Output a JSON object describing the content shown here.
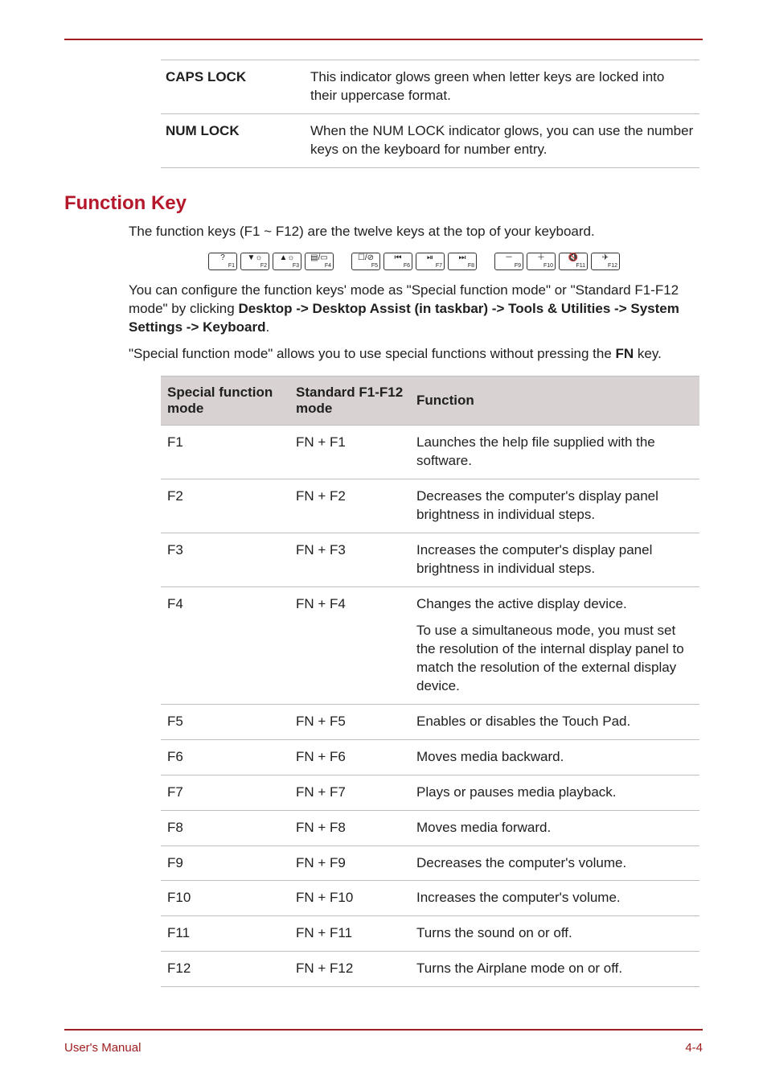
{
  "footer": {
    "left": "User's Manual",
    "right": "4-4"
  },
  "colors": {
    "accent": "#a01e1e",
    "heading": "#b5182a",
    "tableHeaderBg": "#d9d2d2",
    "border": "#bfbfbf",
    "text": "#1f1f1f"
  },
  "indicators": {
    "rows": [
      {
        "key": "CAPS LOCK",
        "desc": "This indicator glows green when letter keys are locked into their uppercase format."
      },
      {
        "key": "NUM LOCK",
        "desc": "When the NUM LOCK indicator glows, you can use the number keys on the keyboard for number entry."
      }
    ]
  },
  "heading": "Function Key",
  "para1": "The function keys (F1 ~ F12) are the twelve keys at the top of your keyboard.",
  "para2_pre": "You can configure the function keys' mode as \"Special function mode\" or \"Standard F1-F12 mode\" by clicking ",
  "para2_bold": "Desktop -> Desktop Assist (in taskbar) -> Tools & Utilities -> System Settings -> Keyboard",
  "para2_post": ".",
  "para3_pre": "\"Special function mode\" allows you to use special functions without pressing the ",
  "para3_bold": "FN",
  "para3_post": " key.",
  "keystrip": {
    "groups": [
      [
        {
          "sym": "?",
          "lbl": "F1"
        },
        {
          "sym": "▼☼",
          "lbl": "F2"
        },
        {
          "sym": "▲☼",
          "lbl": "F3"
        },
        {
          "sym": "▤/▭",
          "lbl": "F4"
        }
      ],
      [
        {
          "sym": "☐/⊘",
          "lbl": "F5"
        },
        {
          "sym": "⏮",
          "lbl": "F6"
        },
        {
          "sym": "⏯",
          "lbl": "F7"
        },
        {
          "sym": "⏭",
          "lbl": "F8"
        }
      ],
      [
        {
          "sym": "－",
          "lbl": "F9"
        },
        {
          "sym": "＋",
          "lbl": "F10"
        },
        {
          "sym": "🔇",
          "lbl": "F11"
        },
        {
          "sym": "✈",
          "lbl": "F12"
        }
      ]
    ]
  },
  "fnTable": {
    "headers": {
      "c1": "Special function mode",
      "c2": "Standard F1-F12 mode",
      "c3": "Function"
    },
    "rows": [
      {
        "c1": "F1",
        "c2": "FN + F1",
        "c3": [
          "Launches the help file supplied with the software."
        ]
      },
      {
        "c1": "F2",
        "c2": "FN + F2",
        "c3": [
          "Decreases the computer's display panel brightness in individual steps."
        ]
      },
      {
        "c1": "F3",
        "c2": "FN + F3",
        "c3": [
          "Increases the computer's display panel brightness in individual steps."
        ]
      },
      {
        "c1": "F4",
        "c2": "FN + F4",
        "c3": [
          "Changes the active display device.",
          "To use a simultaneous mode, you must set the resolution of the internal display panel to match the resolution of the external display device."
        ]
      },
      {
        "c1": "F5",
        "c2": "FN + F5",
        "c3": [
          "Enables or disables the Touch Pad."
        ]
      },
      {
        "c1": "F6",
        "c2": "FN + F6",
        "c3": [
          "Moves media backward."
        ]
      },
      {
        "c1": "F7",
        "c2": "FN + F7",
        "c3": [
          "Plays or pauses media playback."
        ]
      },
      {
        "c1": "F8",
        "c2": "FN + F8",
        "c3": [
          "Moves media forward."
        ]
      },
      {
        "c1": "F9",
        "c2": "FN + F9",
        "c3": [
          "Decreases the computer's volume."
        ]
      },
      {
        "c1": "F10",
        "c2": "FN + F10",
        "c3": [
          "Increases the computer's volume."
        ]
      },
      {
        "c1": "F11",
        "c2": "FN + F11",
        "c3": [
          "Turns the sound on or off."
        ]
      },
      {
        "c1": "F12",
        "c2": "FN + F12",
        "c3": [
          "Turns the Airplane mode on or off."
        ]
      }
    ]
  }
}
